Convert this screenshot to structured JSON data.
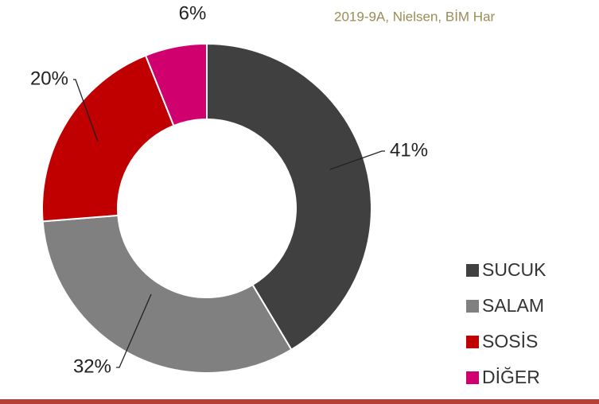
{
  "chart_data": {
    "type": "donut",
    "subtitle": "2019-9A, Nielsen, BİM Har",
    "categories": [
      "SUCUK",
      "SALAM",
      "SOSİS",
      "DİĞER"
    ],
    "values": [
      41,
      32,
      20,
      6
    ],
    "value_labels": [
      "41%",
      "32%",
      "20%",
      "6%"
    ],
    "colors": [
      "#404040",
      "#808080",
      "#c00000",
      "#d0006f"
    ],
    "legend": "right"
  }
}
